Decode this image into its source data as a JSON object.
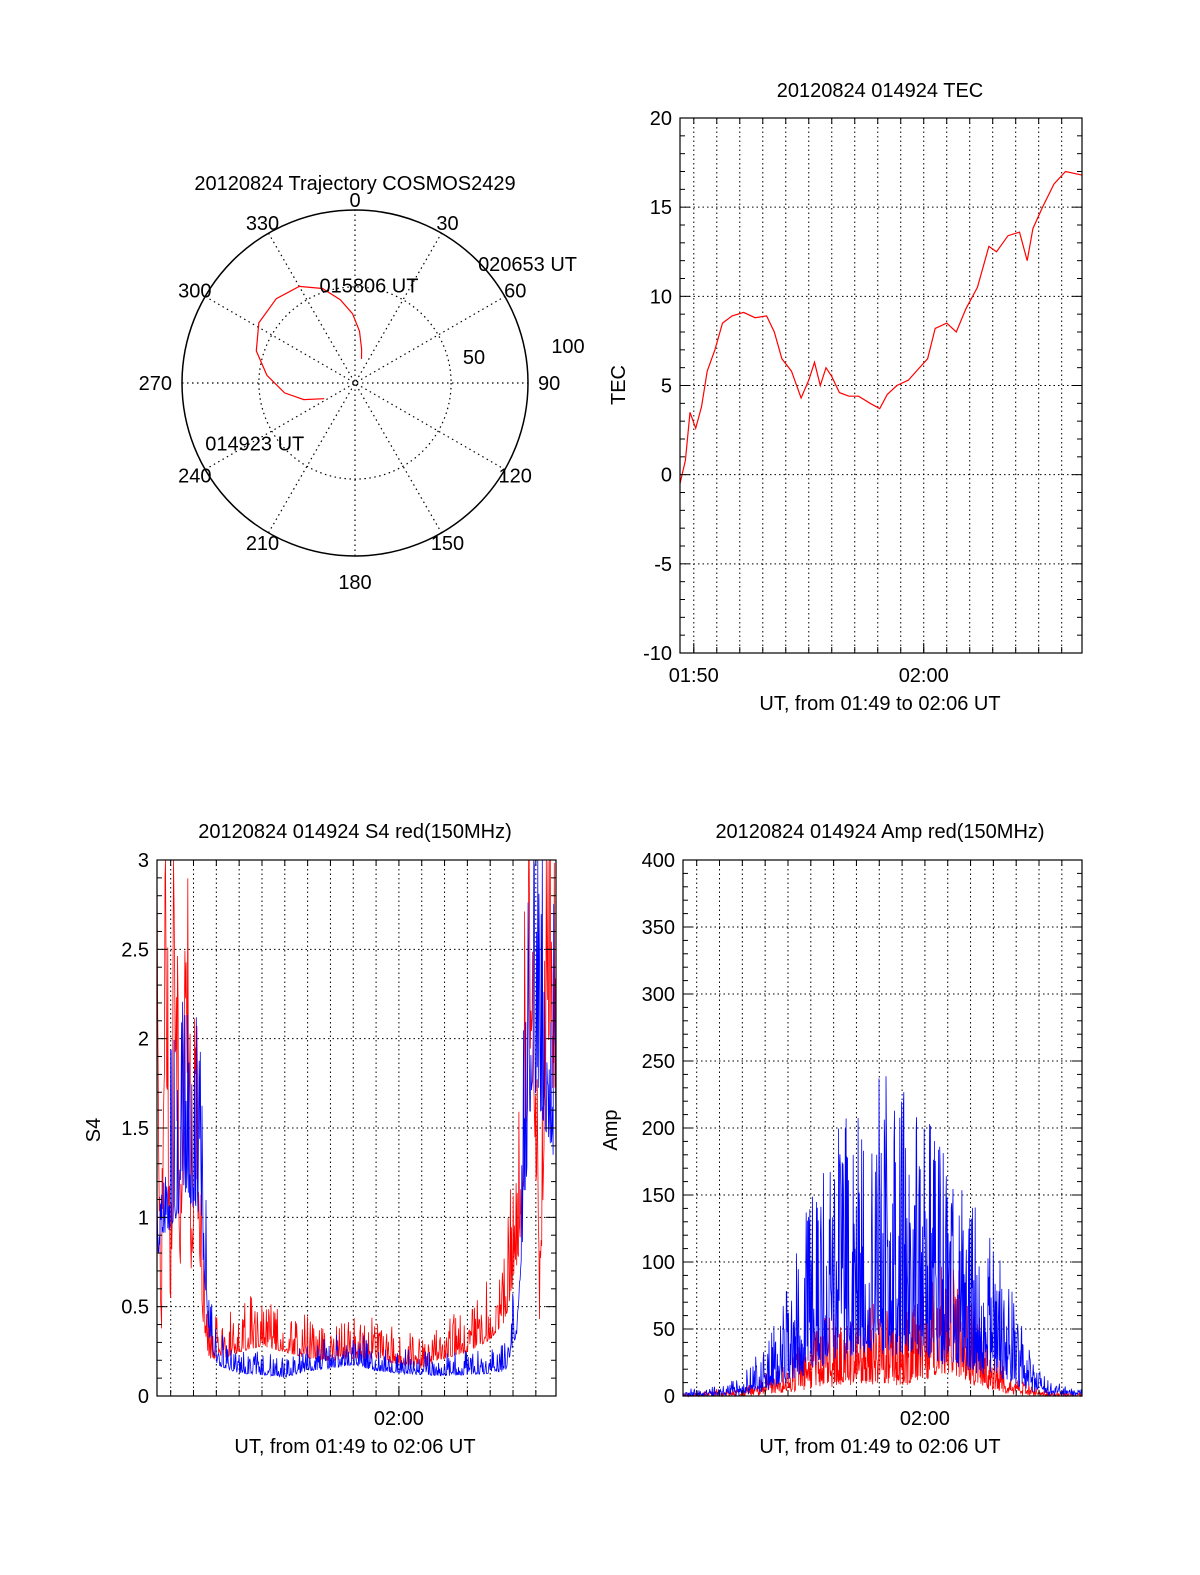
{
  "colors": {
    "red": "#ff0000",
    "blue": "#0000ff",
    "axis": "#000000",
    "grid": "#000000"
  },
  "chart_data": [
    {
      "id": "polar",
      "type": "polar-trajectory",
      "title": "20120824 Trajectory COSMOS2429",
      "grid": true,
      "azimuth_labels": [
        "0",
        "30",
        "60",
        "90",
        "120",
        "150",
        "180",
        "210",
        "240",
        "270",
        "300",
        "330"
      ],
      "radial_labels": [
        "50",
        "100"
      ],
      "radial_max": 90,
      "trajectory": {
        "color": "red",
        "points": [
          [
            243,
            18
          ],
          [
            252,
            28
          ],
          [
            262,
            37
          ],
          [
            275,
            46
          ],
          [
            288,
            54
          ],
          [
            302,
            59
          ],
          [
            317,
            60
          ],
          [
            330,
            58
          ],
          [
            341,
            52
          ],
          [
            350,
            44
          ],
          [
            358,
            36
          ],
          [
            5,
            27
          ],
          [
            11,
            18
          ],
          [
            15,
            13
          ]
        ]
      },
      "annotations": [
        {
          "text": "014923 UT",
          "az": 248,
          "zd": 84
        },
        {
          "text": "015806 UT",
          "az": 340,
          "zd": 54
        },
        {
          "text": "020653 UT",
          "az": 46,
          "zd": 89
        }
      ]
    },
    {
      "id": "tec",
      "type": "line",
      "title": "20120824 014924 TEC",
      "xlabel": "UT, from 01:49 to 02:06 UT",
      "ylabel": "TEC",
      "xlim": [
        "01:49:24",
        "02:06:53"
      ],
      "ylim": [
        -10,
        20
      ],
      "yticks": [
        "-10",
        "-5",
        "0",
        "5",
        "10",
        "15",
        "20"
      ],
      "xticks": [
        {
          "label": "01:50",
          "t": "01:50:00"
        },
        {
          "label": "02:00",
          "t": "02:00:00"
        }
      ],
      "grid": true,
      "series": [
        {
          "color": "red",
          "points": [
            [
              "01:49:24",
              -0.5
            ],
            [
              "01:49:38",
              0.8
            ],
            [
              "01:49:50",
              3.5
            ],
            [
              "01:50:05",
              2.6
            ],
            [
              "01:50:20",
              3.8
            ],
            [
              "01:50:35",
              5.8
            ],
            [
              "01:50:55",
              7.0
            ],
            [
              "01:51:15",
              8.5
            ],
            [
              "01:51:40",
              8.9
            ],
            [
              "01:52:10",
              9.1
            ],
            [
              "01:52:40",
              8.8
            ],
            [
              "01:53:10",
              8.9
            ],
            [
              "01:53:30",
              8.0
            ],
            [
              "01:53:50",
              6.5
            ],
            [
              "01:54:15",
              5.8
            ],
            [
              "01:54:40",
              4.3
            ],
            [
              "01:55:00",
              5.3
            ],
            [
              "01:55:15",
              6.3
            ],
            [
              "01:55:30",
              5.0
            ],
            [
              "01:55:45",
              6.0
            ],
            [
              "01:56:00",
              5.5
            ],
            [
              "01:56:20",
              4.6
            ],
            [
              "01:56:45",
              4.4
            ],
            [
              "01:57:10",
              4.4
            ],
            [
              "01:57:40",
              4.0
            ],
            [
              "01:58:05",
              3.7
            ],
            [
              "01:58:25",
              4.5
            ],
            [
              "01:58:50",
              5.0
            ],
            [
              "01:59:20",
              5.3
            ],
            [
              "01:59:45",
              5.9
            ],
            [
              "02:00:10",
              6.5
            ],
            [
              "02:00:30",
              8.2
            ],
            [
              "02:01:00",
              8.5
            ],
            [
              "02:01:25",
              8.0
            ],
            [
              "02:01:50",
              9.3
            ],
            [
              "02:02:20",
              10.5
            ],
            [
              "02:02:50",
              12.8
            ],
            [
              "02:03:10",
              12.5
            ],
            [
              "02:03:40",
              13.4
            ],
            [
              "02:04:10",
              13.6
            ],
            [
              "02:04:30",
              12.0
            ],
            [
              "02:04:45",
              13.8
            ],
            [
              "02:05:10",
              15.0
            ],
            [
              "02:05:40",
              16.3
            ],
            [
              "02:06:10",
              17.0
            ],
            [
              "02:06:53",
              16.8
            ]
          ]
        }
      ]
    },
    {
      "id": "s4",
      "type": "line",
      "title": "20120824 014924 S4 red(150MHz)",
      "xlabel": "UT, from 01:49 to 02:06 UT",
      "ylabel": "S4",
      "xlim": [
        "01:49:24",
        "02:06:53"
      ],
      "ylim": [
        0,
        3
      ],
      "yticks": [
        "0",
        "0.5",
        "1",
        "1.5",
        "2",
        "2.5",
        "3"
      ],
      "xticks": [
        {
          "label": "02:00",
          "t": "02:00:00"
        }
      ],
      "grid": true,
      "series": [
        {
          "color": "red",
          "points": [
            [
              "01:49:24",
              3.0
            ],
            [
              "01:49:35",
              0.2
            ],
            [
              "01:49:45",
              3.0
            ],
            [
              "01:50:00",
              0.4
            ],
            [
              "01:50:10",
              3.0
            ],
            [
              "01:50:25",
              1.0
            ],
            [
              "01:50:40",
              3.0
            ],
            [
              "01:50:55",
              0.8
            ],
            [
              "01:51:05",
              1.8
            ],
            [
              "01:51:25",
              0.6
            ],
            [
              "01:51:40",
              0.3
            ],
            [
              "01:52:20",
              0.3
            ],
            [
              "01:53:00",
              0.35
            ],
            [
              "01:54:00",
              0.4
            ],
            [
              "01:55:00",
              0.35
            ],
            [
              "01:56:00",
              0.3
            ],
            [
              "01:57:00",
              0.28
            ],
            [
              "01:58:00",
              0.3
            ],
            [
              "01:59:00",
              0.3
            ],
            [
              "02:00:00",
              0.25
            ],
            [
              "02:01:00",
              0.22
            ],
            [
              "02:02:00",
              0.3
            ],
            [
              "02:03:00",
              0.35
            ],
            [
              "02:04:00",
              0.45
            ],
            [
              "02:04:40",
              0.6
            ],
            [
              "02:05:20",
              1.2
            ],
            [
              "02:05:50",
              3.0
            ],
            [
              "02:06:10",
              0.5
            ],
            [
              "02:06:30",
              3.0
            ],
            [
              "02:06:53",
              2.0
            ]
          ]
        },
        {
          "color": "blue",
          "points": [
            [
              "01:49:24",
              1.1
            ],
            [
              "01:49:40",
              1.25
            ],
            [
              "01:50:00",
              1.35
            ],
            [
              "01:50:20",
              1.45
            ],
            [
              "01:50:40",
              1.6
            ],
            [
              "01:51:00",
              1.5
            ],
            [
              "01:51:20",
              1.3
            ],
            [
              "01:51:40",
              0.5
            ],
            [
              "01:52:00",
              0.25
            ],
            [
              "01:53:00",
              0.18
            ],
            [
              "01:54:00",
              0.17
            ],
            [
              "01:55:00",
              0.15
            ],
            [
              "01:56:00",
              0.2
            ],
            [
              "01:57:00",
              0.22
            ],
            [
              "01:58:00",
              0.25
            ],
            [
              "01:59:00",
              0.2
            ],
            [
              "02:00:00",
              0.18
            ],
            [
              "02:01:00",
              0.17
            ],
            [
              "02:02:00",
              0.16
            ],
            [
              "02:03:00",
              0.17
            ],
            [
              "02:04:00",
              0.18
            ],
            [
              "02:04:40",
              0.2
            ],
            [
              "02:05:10",
              0.5
            ],
            [
              "02:05:30",
              1.5
            ],
            [
              "02:05:50",
              2.5
            ],
            [
              "02:06:20",
              2.2
            ],
            [
              "02:06:53",
              1.8
            ]
          ]
        }
      ]
    },
    {
      "id": "amp",
      "type": "line",
      "title": "20120824 014924 Amp red(150MHz)",
      "xlabel": "UT, from 01:49 to 02:06 UT",
      "ylabel": "Amp",
      "xlim": [
        "01:49:24",
        "02:06:53"
      ],
      "ylim": [
        0,
        400
      ],
      "yticks": [
        "0",
        "50",
        "100",
        "150",
        "200",
        "250",
        "300",
        "350",
        "400"
      ],
      "xticks": [
        {
          "label": "02:00",
          "t": "02:00:00"
        }
      ],
      "grid": true,
      "series": [
        {
          "color": "red",
          "points": [
            [
              "01:49:24",
              0
            ],
            [
              "01:51:00",
              2
            ],
            [
              "01:52:00",
              3
            ],
            [
              "01:53:00",
              8
            ],
            [
              "01:54:00",
              15
            ],
            [
              "01:55:00",
              25
            ],
            [
              "01:56:00",
              35
            ],
            [
              "01:57:00",
              40
            ],
            [
              "01:58:00",
              38
            ],
            [
              "01:59:00",
              35
            ],
            [
              "02:00:00",
              45
            ],
            [
              "02:00:30",
              60
            ],
            [
              "02:01:00",
              65
            ],
            [
              "02:01:30",
              55
            ],
            [
              "02:02:00",
              40
            ],
            [
              "02:03:00",
              20
            ],
            [
              "02:04:00",
              8
            ],
            [
              "02:05:00",
              2
            ],
            [
              "02:06:53",
              0
            ]
          ]
        },
        {
          "color": "blue",
          "points": [
            [
              "01:49:24",
              2
            ],
            [
              "01:51:00",
              3
            ],
            [
              "01:52:00",
              8
            ],
            [
              "01:53:00",
              20
            ],
            [
              "01:54:00",
              45
            ],
            [
              "01:55:00",
              80
            ],
            [
              "01:56:00",
              110
            ],
            [
              "01:57:00",
              120
            ],
            [
              "01:58:00",
              130
            ],
            [
              "01:59:00",
              125
            ],
            [
              "02:00:00",
              120
            ],
            [
              "02:00:30",
              110
            ],
            [
              "02:01:00",
              95
            ],
            [
              "02:02:00",
              80
            ],
            [
              "02:03:00",
              60
            ],
            [
              "02:04:00",
              40
            ],
            [
              "02:04:30",
              20
            ],
            [
              "02:05:30",
              5
            ],
            [
              "02:06:53",
              2
            ]
          ]
        }
      ]
    }
  ]
}
